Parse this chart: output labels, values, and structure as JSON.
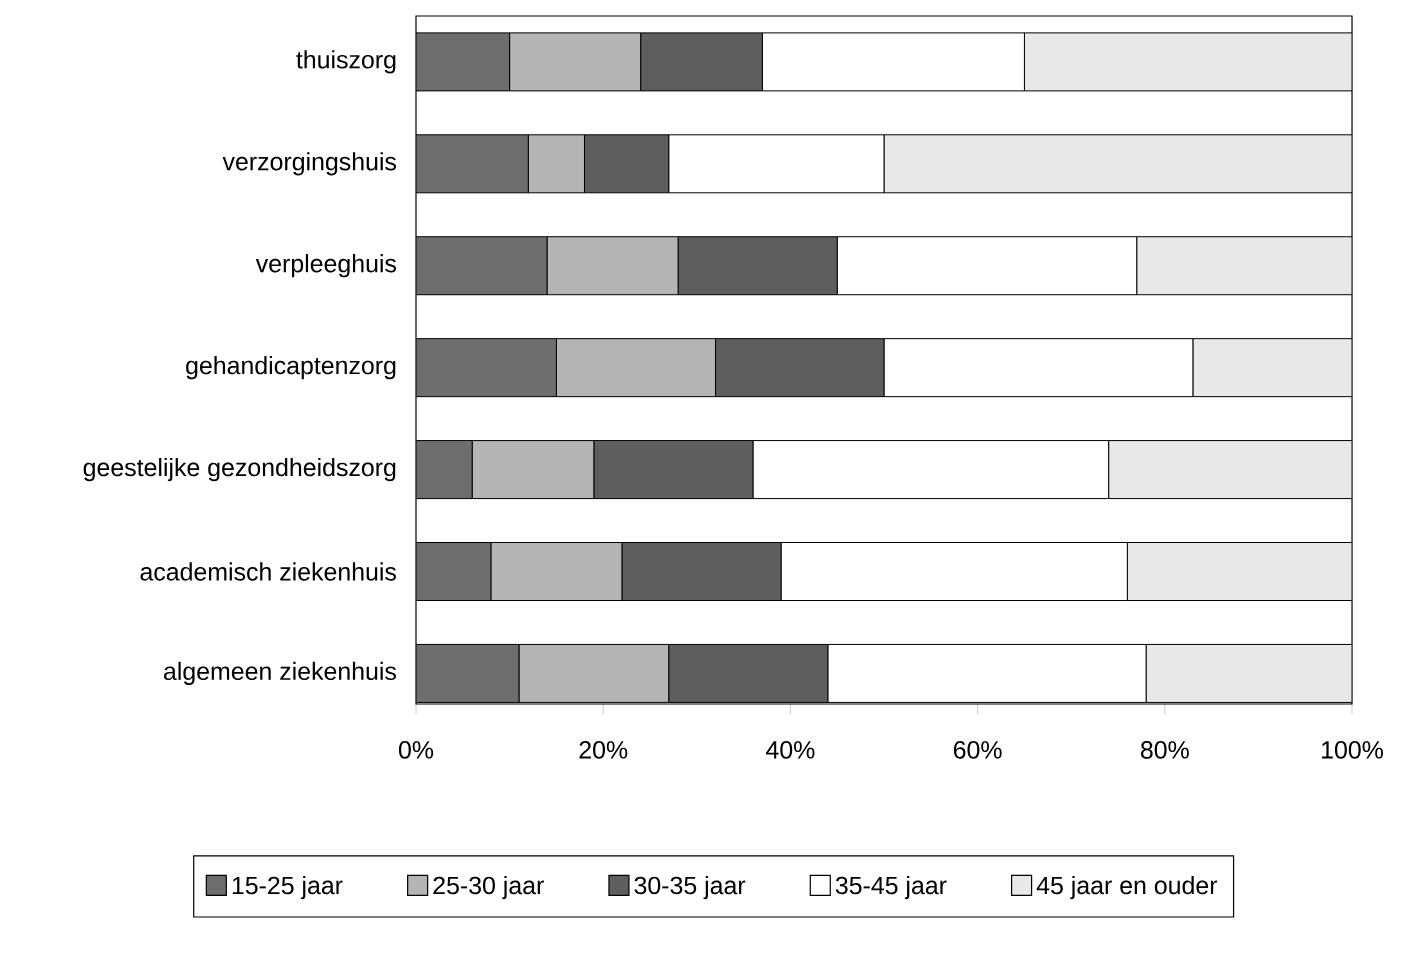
{
  "chart_data": {
    "type": "bar",
    "orientation": "horizontal",
    "stacked": true,
    "categories": [
      "thuiszorg",
      "verzorgingshuis",
      "verpleeghuis",
      "gehandicaptenzorg",
      "geestelijke gezondheidszorg",
      "academisch ziekenhuis",
      "algemeen ziekenhuis"
    ],
    "series": [
      {
        "name": "15-25 jaar",
        "color": "#6e6e6e",
        "values": [
          10,
          12,
          14,
          15,
          6,
          8,
          11
        ]
      },
      {
        "name": "25-30 jaar",
        "color": "#b4b4b4",
        "values": [
          14,
          6,
          14,
          17,
          13,
          14,
          16
        ]
      },
      {
        "name": "30-35 jaar",
        "color": "#5c5f5e",
        "values": [
          13,
          9,
          17,
          18,
          17,
          17,
          17
        ]
      },
      {
        "name": "35-45 jaar",
        "color": "#ffffff",
        "values": [
          28,
          23,
          32,
          33,
          38,
          37,
          34
        ]
      },
      {
        "name": "45 jaar en ouder",
        "color": "#e8e8e8",
        "values": [
          35,
          50,
          23,
          17,
          26,
          24,
          22
        ]
      }
    ],
    "xlim": [
      0,
      100
    ],
    "xticks": [
      {
        "value": 0,
        "label": "0%"
      },
      {
        "value": 20,
        "label": "20%"
      },
      {
        "value": 40,
        "label": "40%"
      },
      {
        "value": 60,
        "label": "60%"
      },
      {
        "value": 80,
        "label": "80%"
      },
      {
        "value": 100,
        "label": "100%"
      }
    ],
    "legend": "bottom"
  }
}
